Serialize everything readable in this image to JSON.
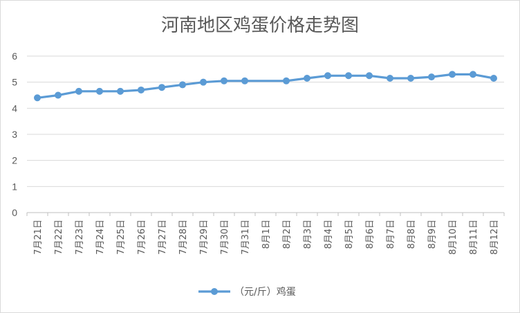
{
  "chart_data": {
    "type": "line",
    "title": "河南地区鸡蛋价格走势图",
    "xlabel": "",
    "ylabel": "",
    "ylim": [
      0,
      6
    ],
    "yticks": [
      0,
      1,
      2,
      3,
      4,
      5,
      6
    ],
    "grid": true,
    "legend_position": "bottom",
    "series_color": "#5b9bd5",
    "categories": [
      "7月21日",
      "7月22日",
      "7月23日",
      "7月24日",
      "7月25日",
      "7月26日",
      "7月27日",
      "7月28日",
      "7月29日",
      "7月30日",
      "7月31日",
      "8月1日",
      "8月2日",
      "8月3日",
      "8月4日",
      "8月5日",
      "8月6日",
      "8月7日",
      "8月8日",
      "8月9日",
      "8月10日",
      "8月11日",
      "8月12日"
    ],
    "series": [
      {
        "name": "（元/斤）鸡蛋",
        "values": [
          4.4,
          4.5,
          4.65,
          4.65,
          4.65,
          4.7,
          4.8,
          4.9,
          5.0,
          5.05,
          5.05,
          null,
          5.05,
          5.15,
          5.25,
          5.25,
          5.25,
          5.15,
          5.15,
          5.2,
          5.3,
          5.3,
          5.15
        ]
      }
    ]
  }
}
